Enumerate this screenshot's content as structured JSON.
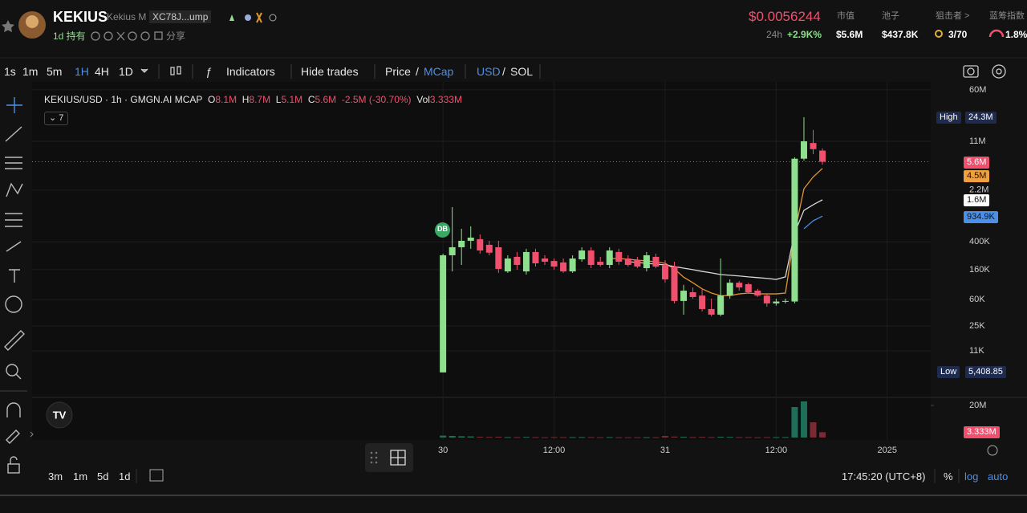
{
  "header": {
    "name": "KEKIUS",
    "subname": "Kekius M",
    "address": "XC78J...ump",
    "holding": "1d 持有",
    "share": "分享",
    "price": "$0.0056244",
    "change_label": "24h",
    "change": "+2.9K%",
    "stats": [
      {
        "label": "市值",
        "value": "$5.6M"
      },
      {
        "label": "池子",
        "value": "$437.8K"
      },
      {
        "label": "狙击者 >",
        "value": "3/70"
      },
      {
        "label": "蓝筹指数",
        "value": "1.8%"
      }
    ]
  },
  "toolbar": {
    "intervals": [
      "1s",
      "1m",
      "5m",
      "1H",
      "4H",
      "1D"
    ],
    "indicators": "Indicators",
    "hide_trades": "Hide trades",
    "price": "Price",
    "mcap": "MCap",
    "usd": "USD",
    "sol": "SOL"
  },
  "legend": {
    "symbol": "KEKIUS/USD · 1h · GMGN.AI MCAP",
    "o_label": "O",
    "o": "8.1M",
    "h_label": "H",
    "h": "8.7M",
    "l_label": "L",
    "l": "5.1M",
    "c_label": "C",
    "c": "5.6M",
    "change": "-2.5M (-30.70%)",
    "vol_label": "Vol",
    "vol": "3.333M",
    "indicator_count": "7",
    "marker": "DB"
  },
  "price_tags": {
    "high_label": "High",
    "high": "24.3M",
    "low_label": "Low",
    "low": "5,408.85",
    "last": "5.6M",
    "ma": [
      "4.5M",
      "1.6M",
      "934.9K"
    ],
    "volume": "3.333M"
  },
  "chart_data": {
    "type": "candlestick",
    "log_scale": true,
    "grid": true,
    "up_color": "#8ee08e",
    "down_color": "#f0506e",
    "volume_up_color": "#1f6e5a",
    "volume_down_color": "#7a2a35",
    "x": [
      0,
      1,
      2,
      3,
      4,
      5,
      6,
      7,
      8,
      9,
      10,
      11,
      12,
      13,
      14,
      15,
      16,
      17,
      18,
      19,
      20,
      21,
      22,
      23,
      24,
      25,
      26,
      27,
      28,
      29,
      30,
      31,
      32,
      33,
      34,
      35,
      36,
      37,
      38,
      39,
      40,
      41
    ],
    "xlim": [
      -44.4,
      52.7
    ],
    "xticks": [
      {
        "value": 0,
        "label": "30"
      },
      {
        "value": 12,
        "label": "12:00"
      },
      {
        "value": 24,
        "label": "31"
      },
      {
        "value": 36,
        "label": "12:00"
      },
      {
        "value": 48,
        "label": "2025"
      }
    ],
    "ylim": [
      2570,
      86700000
    ],
    "yticks": [
      {
        "value": 60000000,
        "label": "60M"
      },
      {
        "value": 11000000,
        "label": "11M"
      },
      {
        "value": 2200000,
        "label": "2.2M"
      },
      {
        "value": 400000,
        "label": "400K"
      },
      {
        "value": 160000,
        "label": "160K"
      },
      {
        "value": 60000,
        "label": "60K"
      },
      {
        "value": 25000,
        "label": "25K"
      },
      {
        "value": 11000,
        "label": "11K"
      }
    ],
    "open": [
      5408.85,
      257000,
      335000,
      414000,
      437000,
      363000,
      335000,
      151000,
      244000,
      151000,
      286000,
      231000,
      213000,
      203000,
      151000,
      225000,
      301000,
      208000,
      187000,
      286000,
      231000,
      219000,
      168000,
      244000,
      187000,
      177000,
      57000,
      76000,
      68000,
      43700,
      36300,
      68000,
      104000,
      99000,
      80000,
      68000,
      52600,
      56000,
      56000,
      6200000,
      10400000,
      8100000
    ],
    "high": [
      271000,
      1260000,
      616000,
      667000,
      512000,
      414000,
      414000,
      257000,
      286000,
      318000,
      318000,
      257000,
      231000,
      231000,
      257000,
      335000,
      335000,
      244000,
      335000,
      318000,
      257000,
      244000,
      286000,
      271000,
      219000,
      208000,
      97000,
      89000,
      85000,
      61500,
      231000,
      116000,
      110000,
      104000,
      85000,
      72000,
      61500,
      61500,
      6500000,
      24300000,
      16000000,
      8700000
    ],
    "low": [
      5408.85,
      151000,
      187000,
      318000,
      271000,
      257000,
      144000,
      144000,
      160000,
      136000,
      177000,
      187000,
      160000,
      144000,
      144000,
      208000,
      168000,
      177000,
      168000,
      187000,
      177000,
      168000,
      151000,
      168000,
      104000,
      52600,
      36300,
      61500,
      40400,
      34400,
      34400,
      61500,
      80000,
      72000,
      65000,
      47300,
      49000,
      52600,
      52600,
      5800000,
      7200000,
      5100000
    ],
    "close": [
      257000,
      335000,
      414000,
      460000,
      301000,
      280000,
      164000,
      231000,
      187000,
      286000,
      197000,
      208000,
      177000,
      151000,
      231000,
      301000,
      187000,
      187000,
      301000,
      208000,
      187000,
      177000,
      257000,
      177000,
      116000,
      57000,
      80000,
      65000,
      43700,
      36300,
      68000,
      104000,
      89000,
      76000,
      68000,
      52600,
      56000,
      57000,
      6200000,
      11000000,
      8500000,
      5600000
    ],
    "volume": [
      1200000,
      1000000,
      800000,
      700000,
      500000,
      400000,
      500000,
      300000,
      300000,
      400000,
      300000,
      200000,
      300000,
      300000,
      300000,
      300000,
      300000,
      200000,
      300000,
      200000,
      200000,
      200000,
      200000,
      200000,
      1000000,
      600000,
      500000,
      300000,
      400000,
      300000,
      500000,
      400000,
      300000,
      300000,
      200000,
      300000,
      300000,
      300000,
      19000000,
      22500000,
      9500000,
      3333000
    ],
    "volume_ylim": [
      0,
      24000000
    ],
    "volume_yticks": [
      {
        "value": 20000000,
        "label": "20M"
      }
    ],
    "series": [
      {
        "color": "#e0962e",
        "values": [
          null,
          null,
          null,
          null,
          null,
          null,
          null,
          null,
          null,
          null,
          null,
          null,
          null,
          null,
          null,
          null,
          null,
          null,
          231000,
          231000,
          225000,
          219000,
          213000,
          208000,
          197000,
          164000,
          125000,
          104000,
          85000,
          74000,
          68000,
          68000,
          72000,
          74000,
          72000,
          72000,
          72000,
          74000,
          540000,
          2300000,
          3400000,
          4500000
        ]
      },
      {
        "color": "#d8d8d8",
        "values": [
          null,
          null,
          null,
          null,
          null,
          null,
          null,
          null,
          null,
          null,
          null,
          null,
          null,
          null,
          null,
          null,
          null,
          null,
          null,
          null,
          208000,
          203000,
          197000,
          192000,
          187000,
          177000,
          168000,
          160000,
          151000,
          144000,
          136000,
          133000,
          130000,
          126000,
          123000,
          120000,
          116000,
          126000,
          540000,
          1130000,
          1360000,
          1600000
        ]
      },
      {
        "color": "#4c8fe8",
        "values": [
          null,
          null,
          null,
          null,
          null,
          null,
          null,
          null,
          null,
          null,
          null,
          null,
          null,
          null,
          null,
          null,
          null,
          null,
          null,
          null,
          null,
          null,
          null,
          null,
          null,
          null,
          null,
          null,
          null,
          null,
          null,
          null,
          null,
          null,
          null,
          null,
          null,
          null,
          null,
          616000,
          800000,
          934900
        ]
      }
    ]
  },
  "bottom": {
    "ranges": [
      "3m",
      "1m",
      "5d",
      "1d"
    ],
    "time": "17:45:20 (UTC+8)",
    "percent": "%",
    "log": "log",
    "auto": "auto"
  }
}
